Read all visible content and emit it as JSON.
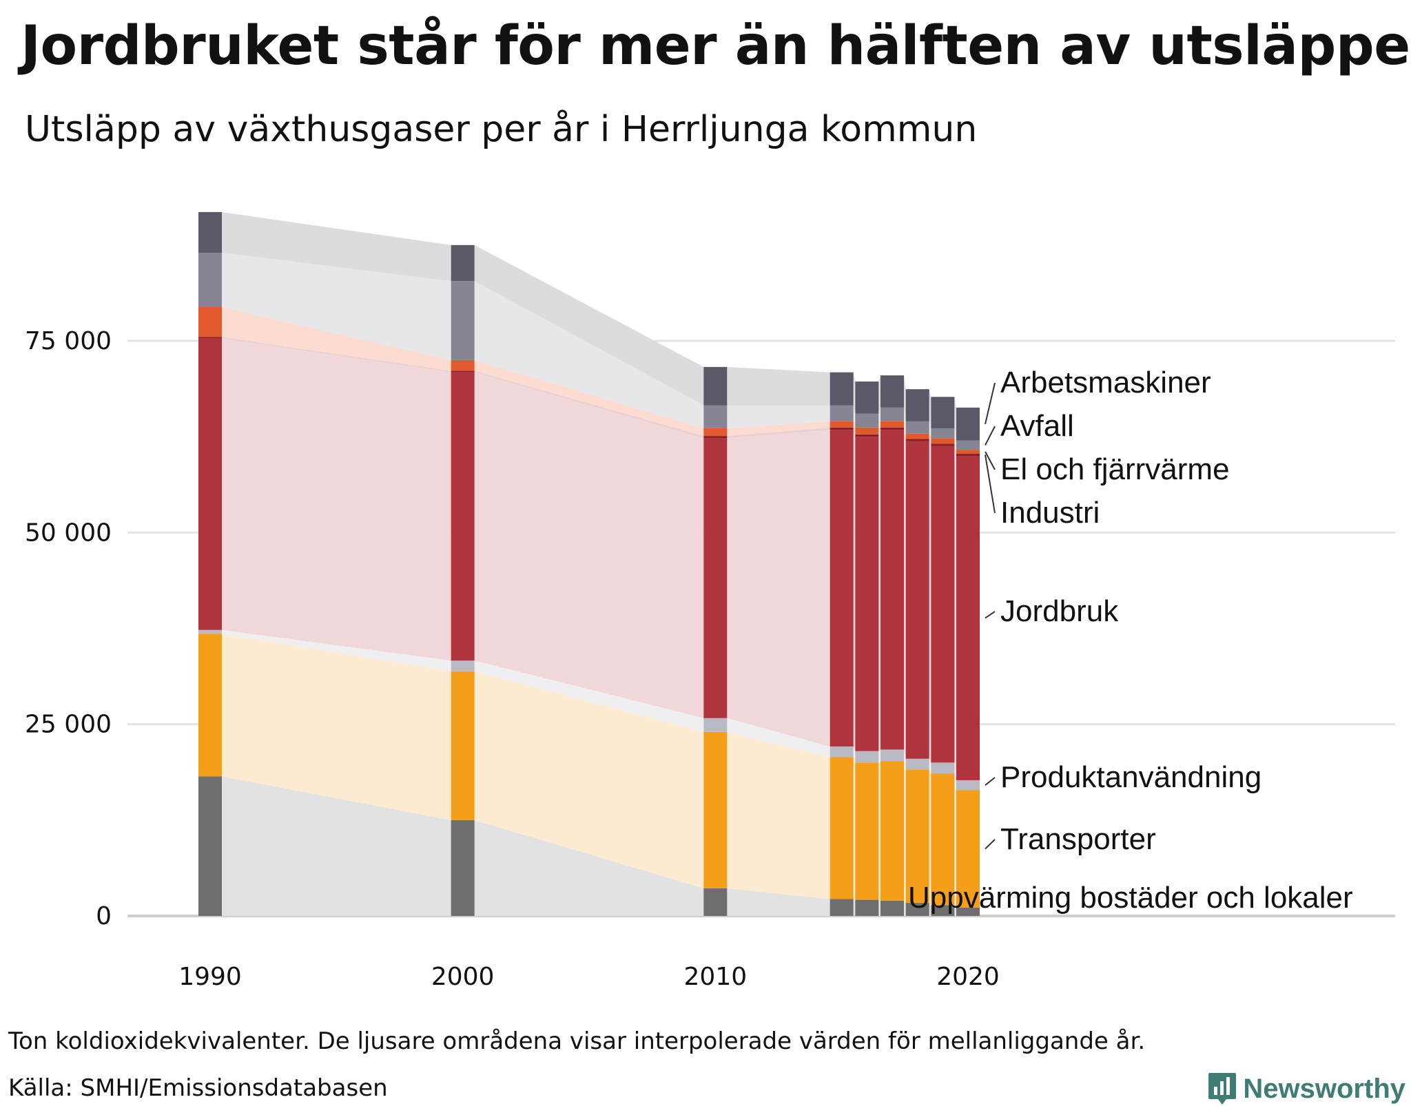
{
  "title": "Jordbruket står för mer än hälften av utsläppen",
  "subtitle": "Utsläpp av växthusgaser per år i Herrljunga kommun",
  "note": "Ton koldioxidekvivalenter. De ljusare områdena visar interpolerade värden för mellanliggande år.",
  "source": "Källa: SMHI/Emissionsdatabasen",
  "brand": {
    "name": "Newsworthy",
    "color": "#3e7c74",
    "icon": "newsworthy-bar-chart-icon"
  },
  "chart_data": {
    "type": "bar",
    "stacked": true,
    "title": "Utsläpp av växthusgaser per år i Herrljunga kommun",
    "ylabel": "Ton koldioxidekvivalenter",
    "ylim": [
      0,
      95000
    ],
    "yticks": [
      0,
      25000,
      50000,
      75000
    ],
    "ytick_labels": [
      "0",
      "25 000",
      "50 000",
      "75 000"
    ],
    "xlim": [
      1985,
      2022
    ],
    "xticks": [
      1990,
      2000,
      2010,
      2020
    ],
    "xtick_labels": [
      "1990",
      "2000",
      "2010",
      "2020"
    ],
    "grid": true,
    "legend_position": "right, direct labels",
    "categories": [
      1990,
      2000,
      2010,
      2015,
      2016,
      2017,
      2018,
      2019,
      2020
    ],
    "series": [
      {
        "name": "Uppvärming bostäder och lokaler",
        "color": "#6e6e6e",
        "light_color": "#e2e2e2",
        "values": [
          18200,
          12500,
          3600,
          2200,
          2100,
          2000,
          1700,
          1400,
          1100
        ]
      },
      {
        "name": "Transporter",
        "color": "#f59e1a",
        "light_color": "#fcebd0",
        "values": [
          18600,
          19400,
          20400,
          18500,
          17900,
          18200,
          17400,
          17200,
          15300
        ]
      },
      {
        "name": "Produktanvändning",
        "color": "#babac4",
        "light_color": "#efeff2",
        "values": [
          500,
          1400,
          1800,
          1400,
          1500,
          1500,
          1400,
          1400,
          1300
        ]
      },
      {
        "name": "Jordbruk",
        "color": "#b0343e",
        "light_color": "#f0d7da",
        "values": [
          38000,
          37600,
          36500,
          41300,
          41000,
          41700,
          41400,
          41300,
          42300
        ]
      },
      {
        "name": "Industri",
        "color": "#8c1f2c",
        "light_color": "#ead0d3",
        "values": [
          200,
          200,
          300,
          300,
          300,
          300,
          300,
          300,
          300
        ]
      },
      {
        "name": "El och fjärrvärme",
        "color": "#e05a2b",
        "light_color": "#fcdcd0",
        "values": [
          3900,
          1400,
          1000,
          800,
          900,
          800,
          700,
          700,
          500
        ]
      },
      {
        "name": "Avfall",
        "color": "#878593",
        "light_color": "#e7e7ea",
        "values": [
          7100,
          10300,
          3000,
          2100,
          1800,
          1800,
          1600,
          1300,
          1200
        ]
      },
      {
        "name": "Arbetsmaskiner",
        "color": "#5b5868",
        "light_color": "#dcdcdf",
        "values": [
          5300,
          4700,
          5000,
          4300,
          4200,
          4200,
          4200,
          4100,
          4300
        ]
      }
    ],
    "direct_labels": [
      {
        "series": "Arbetsmaskiner",
        "text": "Arbetsmaskiner"
      },
      {
        "series": "Avfall",
        "text": "Avfall"
      },
      {
        "series": "El och fjärrvärme",
        "text": "El och fjärrvärme"
      },
      {
        "series": "Industri",
        "text": "Industri"
      },
      {
        "series": "Jordbruk",
        "text": "Jordbruk"
      },
      {
        "series": "Produktanvändning",
        "text": "Produktanvändning"
      },
      {
        "series": "Transporter",
        "text": "Transporter"
      },
      {
        "series": "Uppvärming bostäder och lokaler",
        "text": "Uppvärming bostäder och lokaler"
      }
    ]
  }
}
